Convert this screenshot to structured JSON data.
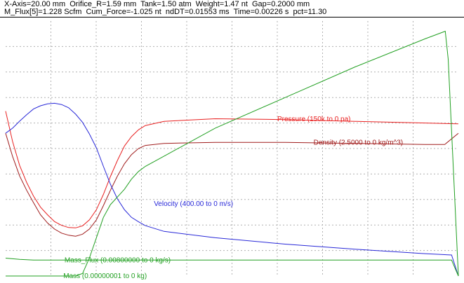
{
  "header": {
    "line1": "X-Axis=20.00 mm  Orifice_R=1.59 mm  Tank=1.50 atm  Weight=1.47 nt  Gap=0.2000 mm",
    "line2": "M_Flux[5]=1.228 Scfm  Cum_Force=-1.025 nt  ndDT=0.01553 ms  Time=0.00226 s  pct=11.30"
  },
  "chart_data": {
    "type": "line",
    "x_axis_length_mm": 20.0,
    "grid": true,
    "grid_divisions": {
      "x": 10,
      "y": 10
    },
    "series": [
      {
        "name": "Pressure (150k to 0 pa)",
        "color": "#e82020",
        "x": [
          0.0,
          0.31,
          0.62,
          0.93,
          1.23,
          1.54,
          1.85,
          2.16,
          2.47,
          2.78,
          3.09,
          3.4,
          3.7,
          4.01,
          4.32,
          4.63,
          4.94,
          5.25,
          5.56,
          5.87,
          6.17,
          7.0,
          9.26,
          12.35,
          15.44,
          18.52,
          20.0
        ],
        "y": [
          97000,
          79000,
          65000,
          55000,
          47000,
          40500,
          36000,
          32000,
          29800,
          28500,
          28300,
          29500,
          33000,
          39000,
          48000,
          58500,
          68000,
          76500,
          82000,
          86000,
          88500,
          91000,
          92500,
          92000,
          91000,
          90000,
          89500
        ]
      },
      {
        "name": "Density (2.5000 to 0 kg/m^3)",
        "color": "#a01c1c",
        "x": [
          0.0,
          0.31,
          0.62,
          0.93,
          1.23,
          1.54,
          1.85,
          2.16,
          2.47,
          2.78,
          3.09,
          3.4,
          3.7,
          4.01,
          4.32,
          4.63,
          4.94,
          5.25,
          5.56,
          5.87,
          6.17,
          7.0,
          9.26,
          12.35,
          15.44,
          18.52,
          19.4,
          20.0
        ],
        "y": [
          1.4,
          1.17,
          0.98,
          0.84,
          0.72,
          0.6,
          0.52,
          0.46,
          0.42,
          0.4,
          0.39,
          0.41,
          0.46,
          0.55,
          0.69,
          0.84,
          0.98,
          1.1,
          1.19,
          1.25,
          1.28,
          1.3,
          1.31,
          1.31,
          1.3,
          1.29,
          1.29,
          1.4
        ]
      },
      {
        "name": "Velocity (400.00 to 0 m/s)",
        "color": "#2828d8",
        "x": [
          0.0,
          0.31,
          0.62,
          0.93,
          1.23,
          1.54,
          1.85,
          2.16,
          2.47,
          2.78,
          3.09,
          3.4,
          3.7,
          4.01,
          4.32,
          4.63,
          4.94,
          5.25,
          5.56,
          5.87,
          6.17,
          7.0,
          9.26,
          12.35,
          15.44,
          18.52,
          19.7,
          20.0
        ],
        "y": [
          224,
          232,
          243,
          253,
          262,
          267,
          270,
          271,
          269,
          264,
          254,
          241,
          223,
          201,
          172,
          144,
          121,
          104,
          92,
          85,
          79,
          70,
          60,
          50,
          42,
          35,
          33,
          0
        ]
      },
      {
        "name": "Mass_Flux (0.00800000 to 0 kg/s)",
        "color": "#22a022",
        "x": [
          0.0,
          0.31,
          0.62,
          0.93,
          1.23,
          1.54,
          1.85,
          2.16,
          2.47,
          2.78,
          3.09,
          3.4,
          3.7,
          4.01,
          4.32,
          4.63,
          4.94,
          5.25,
          5.56,
          5.87,
          6.17,
          7.0,
          9.26,
          12.35,
          15.44,
          18.52,
          19.7,
          20.0
        ],
        "y": [
          0.00056,
          0.00054,
          0.00052,
          0.00051,
          0.0005,
          0.0005,
          0.0005,
          0.0005,
          0.0005,
          0.0005,
          0.0005,
          0.0005,
          0.0005,
          0.0005,
          0.0005,
          0.0005,
          0.0005,
          0.0005,
          0.0005,
          0.0005,
          0.0005,
          0.0005,
          0.0005,
          0.0005,
          0.0005,
          0.0005,
          0.0005,
          0.0
        ]
      },
      {
        "name": "Mass (0.00000001 to 0 kg)",
        "color": "#22a022",
        "x": [
          0.0,
          3.09,
          3.4,
          3.7,
          4.01,
          4.32,
          4.63,
          4.94,
          5.25,
          5.56,
          5.87,
          6.17,
          7.0,
          9.26,
          12.35,
          15.44,
          18.52,
          19.42,
          19.55,
          20.0
        ],
        "y": [
          0.0,
          0.0,
          1e-10,
          7e-10,
          1.5e-09,
          2.3e-09,
          2.8e-09,
          3.1e-09,
          3.4e-09,
          3.8e-09,
          4.1e-09,
          4.3e-09,
          4.7e-09,
          5.8e-09,
          7e-09,
          8.2e-09,
          9.3e-09,
          9.6e-09,
          8.5e-09,
          0.0
        ]
      }
    ],
    "scales": {
      "Pressure (150k to 0 pa)": [
        0,
        150000
      ],
      "Density (2.5000 to 0 kg/m^3)": [
        0,
        2.5
      ],
      "Velocity (400.00 to 0 m/s)": [
        0,
        400
      ],
      "Mass_Flux (0.00800000 to 0 kg/s)": [
        0,
        0.008
      ],
      "Mass (0.00000001 to 0 kg)": [
        0,
        1e-08
      ]
    },
    "labels": [
      {
        "text": "Pressure (150k to 0 pa)",
        "color": "#e82020",
        "x": 12.0,
        "series": "Pressure (150k to 0 pa)",
        "y": 92300
      },
      {
        "text": "Density (2.5000 to 0 kg/m^3)",
        "color": "#a01c1c",
        "x": 13.6,
        "series": "Density (2.5000 to 0 kg/m^3)",
        "y": 1.31
      },
      {
        "text": "Velocity (400.00 to 0 m/s)",
        "color": "#2828d8",
        "x": 6.55,
        "series": "Velocity (400.00 to 0 m/s)",
        "y": 113
      },
      {
        "text": "Mass_Flux (0.00800000 to 0 kg/s)",
        "color": "#22a022",
        "x": 2.6,
        "series": "Mass_Flux (0.00800000 to 0 kg/s)",
        "y": 0.0005
      },
      {
        "text": "Mass (0.00000001 to 0 kg)",
        "color": "#22a022",
        "x": 2.55,
        "series": "Mass (0.00000001 to 0 kg)",
        "y": 0.0
      }
    ]
  }
}
